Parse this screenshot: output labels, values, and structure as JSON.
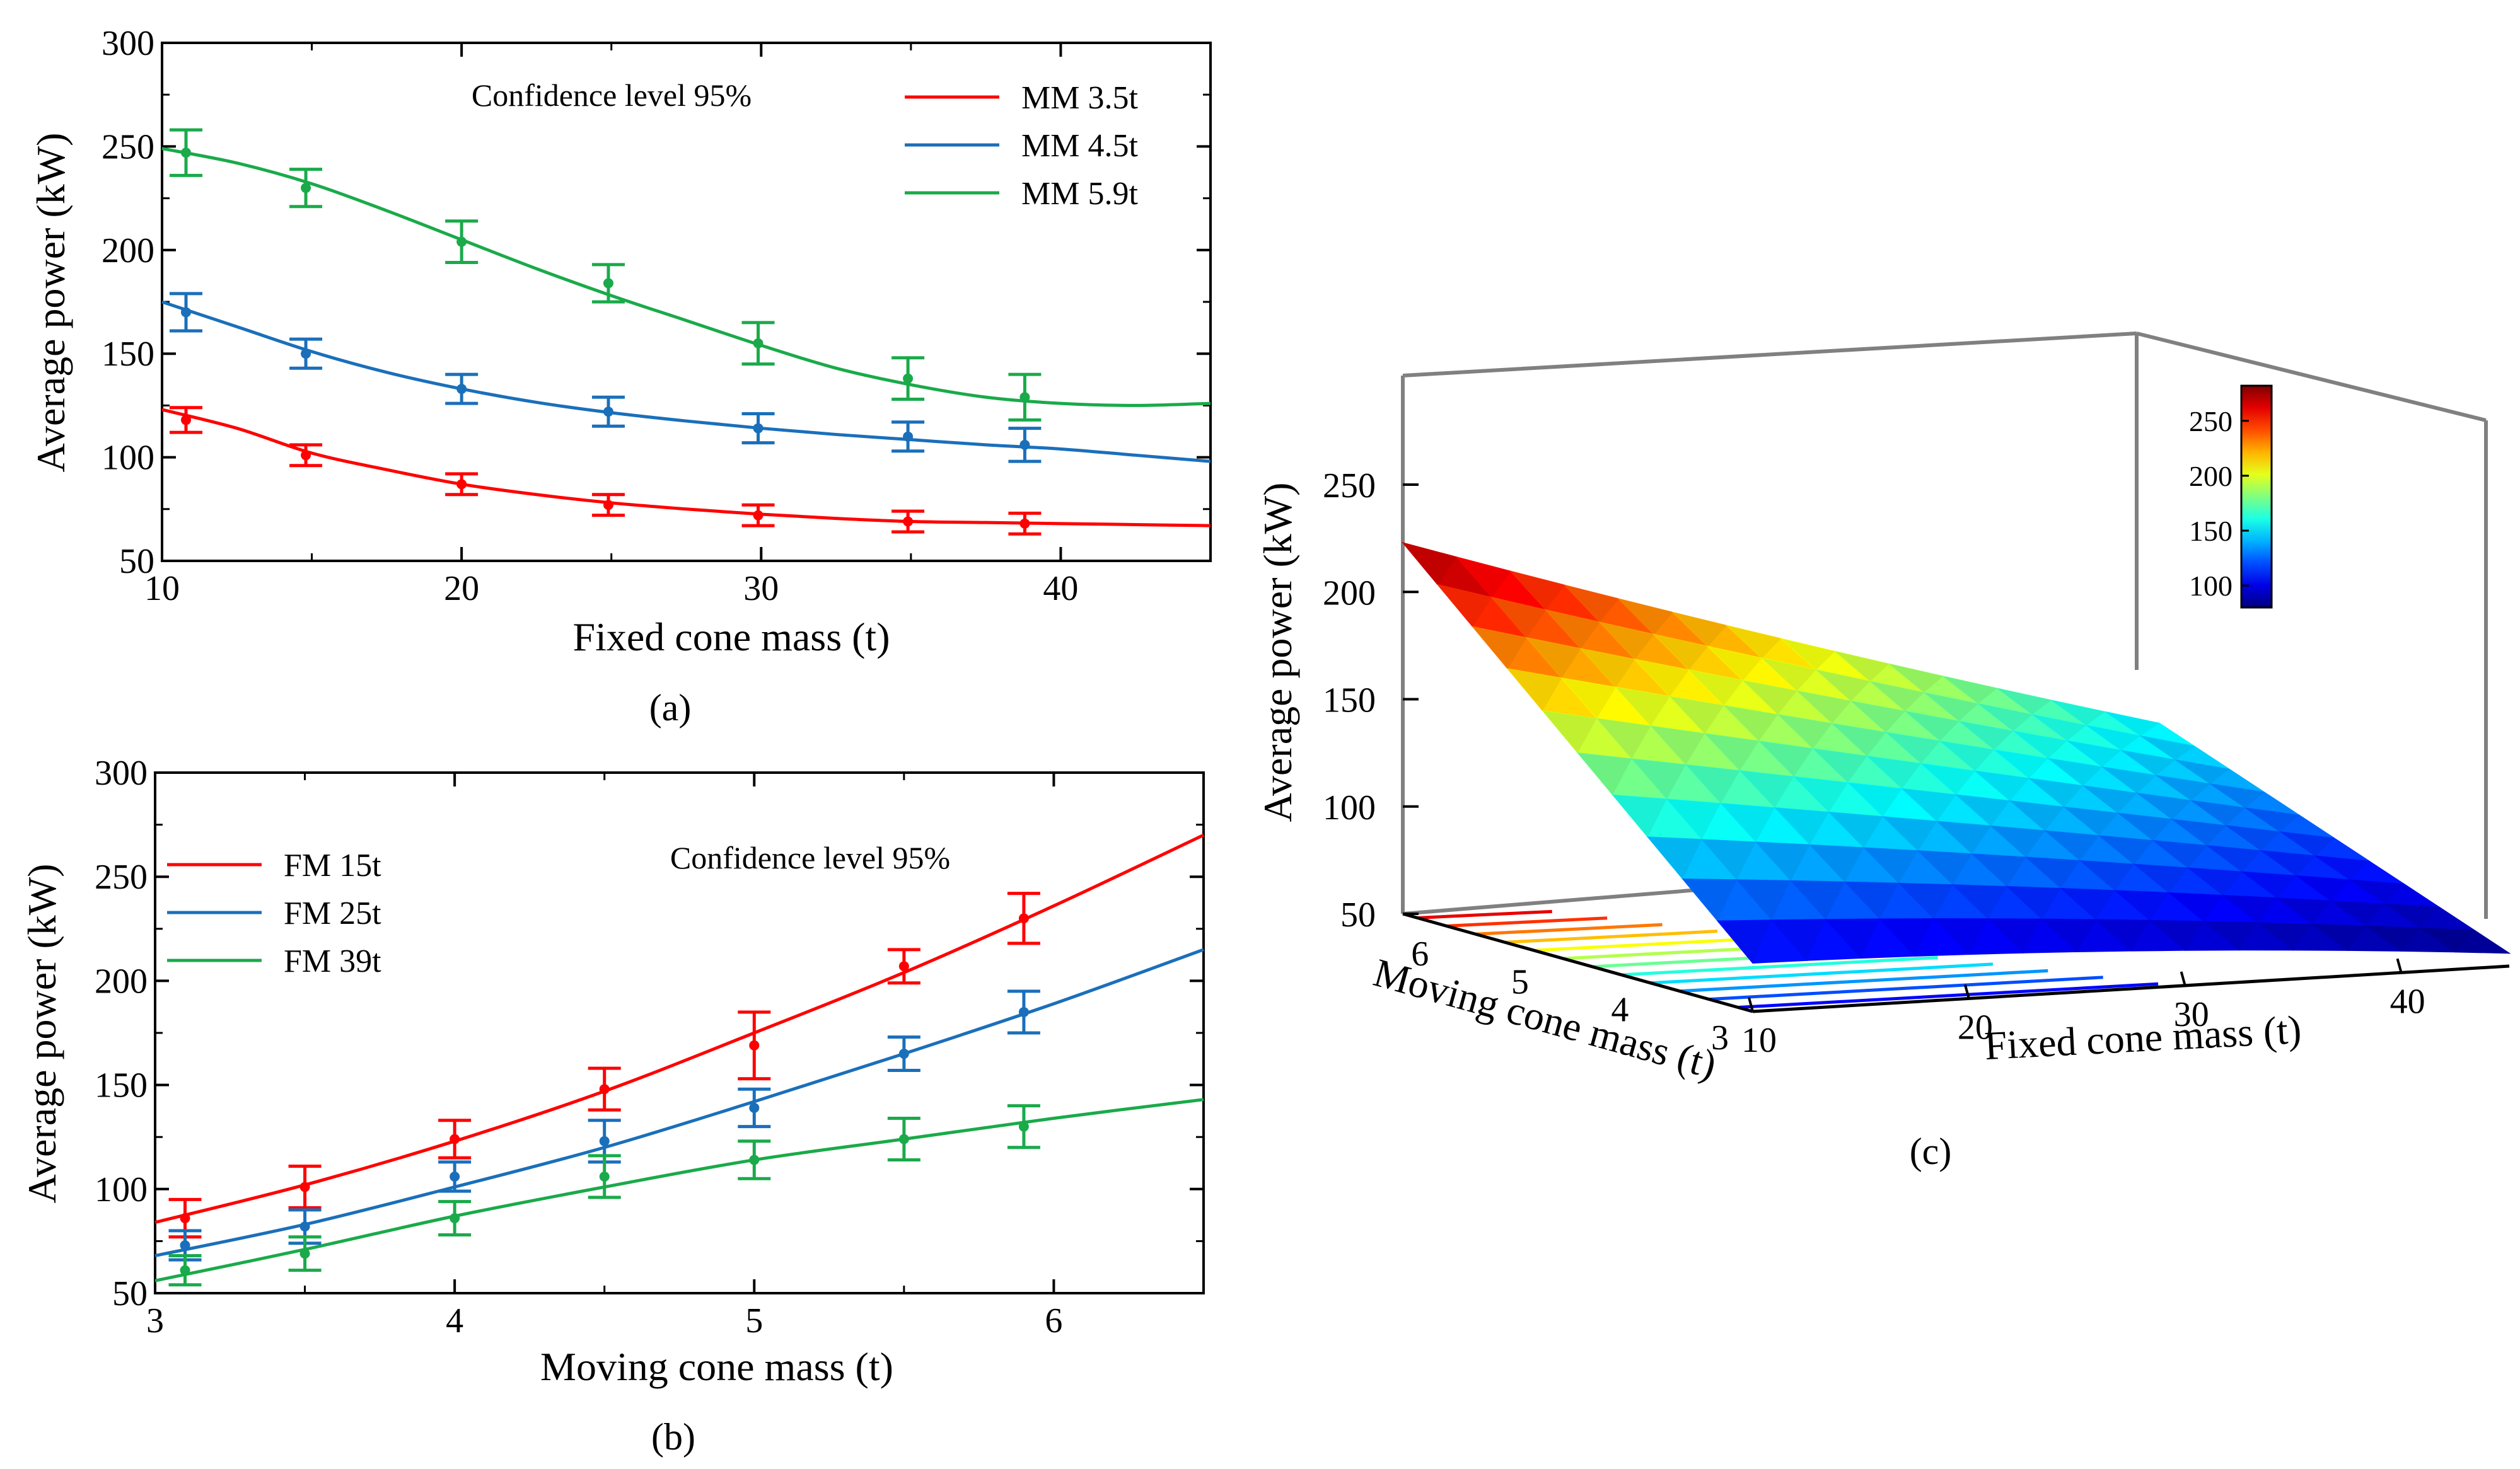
{
  "chart_data": [
    {
      "panel_label": "(a)",
      "type": "line",
      "xlabel": "Fixed cone mass (t)",
      "ylabel": "Average power (kW)",
      "xlim": [
        10,
        45
      ],
      "ylim": [
        50,
        300
      ],
      "xticks": [
        10,
        20,
        30,
        40
      ],
      "yticks": [
        50,
        100,
        150,
        200,
        250,
        300
      ],
      "annotation": "Confidence level 95%",
      "legend_position": "top-right",
      "series": [
        {
          "name": "MM 3.5t",
          "color": "#ff0000",
          "points": [
            {
              "x": 10.8,
              "y": 118,
              "err": 6
            },
            {
              "x": 14.8,
              "y": 101,
              "err": 5
            },
            {
              "x": 20.0,
              "y": 87,
              "err": 5
            },
            {
              "x": 24.9,
              "y": 77,
              "err": 5
            },
            {
              "x": 29.9,
              "y": 72,
              "err": 5
            },
            {
              "x": 34.9,
              "y": 69,
              "err": 5
            },
            {
              "x": 38.8,
              "y": 68,
              "err": 5
            }
          ],
          "fit": [
            [
              10,
              123
            ],
            [
              12.5,
              114
            ],
            [
              15,
              102
            ],
            [
              17.5,
              94
            ],
            [
              20,
              87
            ],
            [
              22.5,
              82
            ],
            [
              25,
              78
            ],
            [
              27.5,
              75
            ],
            [
              30,
              72.5
            ],
            [
              32.5,
              70.5
            ],
            [
              35,
              69
            ],
            [
              37.5,
              68.5
            ],
            [
              40,
              68
            ],
            [
              42.5,
              67.5
            ],
            [
              45,
              67
            ]
          ]
        },
        {
          "name": "MM 4.5t",
          "color": "#1a6fba",
          "points": [
            {
              "x": 10.8,
              "y": 170,
              "err": 9
            },
            {
              "x": 14.8,
              "y": 150,
              "err": 7
            },
            {
              "x": 20.0,
              "y": 133,
              "err": 7
            },
            {
              "x": 24.9,
              "y": 122,
              "err": 7
            },
            {
              "x": 29.9,
              "y": 114,
              "err": 7
            },
            {
              "x": 34.9,
              "y": 110,
              "err": 7
            },
            {
              "x": 38.8,
              "y": 106,
              "err": 8
            }
          ],
          "fit": [
            [
              10,
              175
            ],
            [
              12.5,
              163
            ],
            [
              15,
              151
            ],
            [
              17.5,
              141
            ],
            [
              20,
              133
            ],
            [
              22.5,
              126.5
            ],
            [
              25,
              121.5
            ],
            [
              27.5,
              117.5
            ],
            [
              30,
              114
            ],
            [
              32.5,
              111
            ],
            [
              35,
              108.5
            ],
            [
              37.5,
              106
            ],
            [
              40,
              104
            ],
            [
              42.5,
              101
            ],
            [
              45,
              98
            ]
          ]
        },
        {
          "name": "MM 5.9t",
          "color": "#1aaa4a",
          "points": [
            {
              "x": 10.8,
              "y": 247,
              "err": 11
            },
            {
              "x": 14.8,
              "y": 230,
              "err": 9
            },
            {
              "x": 20.0,
              "y": 204,
              "err": 10
            },
            {
              "x": 24.9,
              "y": 184,
              "err": 9
            },
            {
              "x": 29.9,
              "y": 155,
              "err": 10
            },
            {
              "x": 34.9,
              "y": 138,
              "err": 10
            },
            {
              "x": 38.8,
              "y": 129,
              "err": 11
            }
          ],
          "fit": [
            [
              10,
              249
            ],
            [
              12.5,
              242
            ],
            [
              15,
              232
            ],
            [
              17.5,
              219
            ],
            [
              20,
              205
            ],
            [
              22.5,
              191
            ],
            [
              25,
              178
            ],
            [
              27.5,
              166
            ],
            [
              30,
              154
            ],
            [
              32.5,
              143
            ],
            [
              35,
              135
            ],
            [
              37.5,
              129
            ],
            [
              40,
              126
            ],
            [
              42.5,
              125
            ],
            [
              45,
              126
            ]
          ]
        }
      ]
    },
    {
      "panel_label": "(b)",
      "type": "line",
      "xlabel": "Moving cone mass (t)",
      "ylabel": "Average power (kW)",
      "xlim": [
        3,
        6.5
      ],
      "ylim": [
        50,
        300
      ],
      "xticks": [
        3,
        4,
        5,
        6
      ],
      "yticks": [
        50,
        100,
        150,
        200,
        250,
        300
      ],
      "annotation": "Confidence level 95%",
      "legend_position": "top-left",
      "series": [
        {
          "name": "FM 15t",
          "color": "#ff0000",
          "points": [
            {
              "x": 3.1,
              "y": 86,
              "err": 9
            },
            {
              "x": 3.5,
              "y": 101,
              "err": 10
            },
            {
              "x": 4.0,
              "y": 124,
              "err": 9
            },
            {
              "x": 4.5,
              "y": 148,
              "err": 10
            },
            {
              "x": 5.0,
              "y": 169,
              "err": 16
            },
            {
              "x": 5.5,
              "y": 207,
              "err": 8
            },
            {
              "x": 5.9,
              "y": 230,
              "err": 12
            }
          ],
          "fit": [
            [
              3,
              84
            ],
            [
              3.5,
              102
            ],
            [
              4,
              123
            ],
            [
              4.5,
              147
            ],
            [
              5,
              175
            ],
            [
              5.5,
              204
            ],
            [
              6,
              236
            ],
            [
              6.5,
              270
            ]
          ]
        },
        {
          "name": "FM 25t",
          "color": "#1a6fba",
          "points": [
            {
              "x": 3.1,
              "y": 73,
              "err": 7
            },
            {
              "x": 3.5,
              "y": 82,
              "err": 8
            },
            {
              "x": 4.0,
              "y": 106,
              "err": 7
            },
            {
              "x": 4.5,
              "y": 123,
              "err": 10
            },
            {
              "x": 5.0,
              "y": 139,
              "err": 9
            },
            {
              "x": 5.5,
              "y": 165,
              "err": 8
            },
            {
              "x": 5.9,
              "y": 185,
              "err": 10
            }
          ],
          "fit": [
            [
              3,
              68
            ],
            [
              3.5,
              83
            ],
            [
              4,
              101
            ],
            [
              4.5,
              120
            ],
            [
              5,
              142
            ],
            [
              5.5,
              165
            ],
            [
              6,
              189
            ],
            [
              6.5,
              215
            ]
          ]
        },
        {
          "name": "FM 39t",
          "color": "#1aaa4a",
          "points": [
            {
              "x": 3.1,
              "y": 61,
              "err": 7
            },
            {
              "x": 3.5,
              "y": 69,
              "err": 8
            },
            {
              "x": 4.0,
              "y": 86,
              "err": 8
            },
            {
              "x": 4.5,
              "y": 106,
              "err": 10
            },
            {
              "x": 5.0,
              "y": 114,
              "err": 9
            },
            {
              "x": 5.5,
              "y": 124,
              "err": 10
            },
            {
              "x": 5.9,
              "y": 130,
              "err": 10
            }
          ],
          "fit": [
            [
              3,
              56
            ],
            [
              3.5,
              71
            ],
            [
              4,
              87
            ],
            [
              4.5,
              101
            ],
            [
              5,
              114
            ],
            [
              5.5,
              124
            ],
            [
              6,
              134
            ],
            [
              6.5,
              143
            ]
          ]
        }
      ]
    },
    {
      "panel_label": "(c)",
      "type": "surface",
      "xlabel": "Fixed cone mass (t)",
      "ylabel": "Moving cone mass (t)",
      "zlabel": "Average power (kW)",
      "xticks": [
        10,
        20,
        30,
        40
      ],
      "yticks": [
        3,
        4,
        5,
        6
      ],
      "zticks": [
        50,
        100,
        150,
        200,
        250
      ],
      "colorbar_ticks": [
        100,
        150,
        200,
        250
      ],
      "colormap": "jet",
      "z_corners": {
        "fm10_mm6.5": 280,
        "fm45_mm6.5": 140,
        "fm10_mm3": 80,
        "fm45_mm3": 58
      }
    }
  ]
}
